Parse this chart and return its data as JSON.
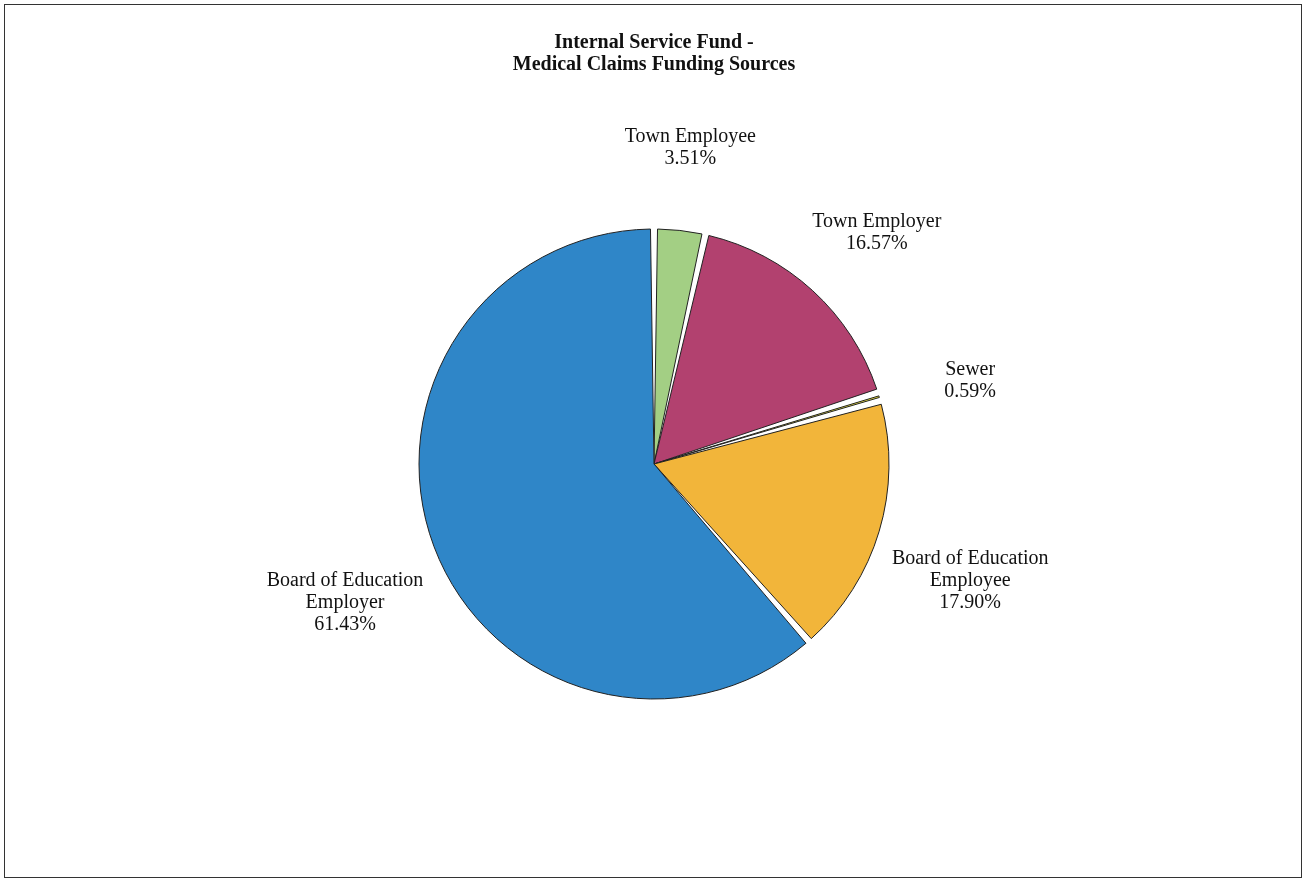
{
  "chart_data": {
    "type": "pie",
    "title": "Internal Service Fund -\nMedical Claims Funding Sources",
    "categories": [
      "Town Employee",
      "Town Employer",
      "Sewer",
      "Board of Education Employee",
      "Board of Education Employer"
    ],
    "values": [
      3.51,
      16.57,
      0.59,
      17.9,
      61.43
    ],
    "value_labels": [
      "3.51%",
      "16.57%",
      "0.59%",
      "17.90%",
      "61.43%"
    ],
    "colors": [
      "#a3cf84",
      "#b2416f",
      "#ede33f",
      "#f2b53a",
      "#2f86c8"
    ],
    "legend": false
  }
}
